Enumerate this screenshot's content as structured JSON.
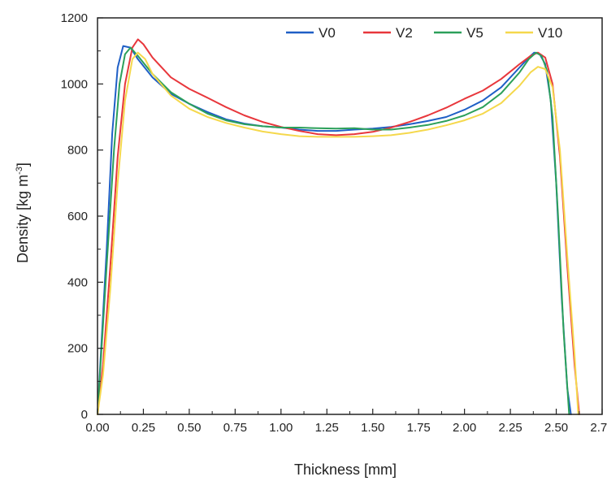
{
  "chart_data": {
    "type": "line",
    "xlabel": "Thickness [mm]",
    "ylabel": {
      "base": "Density [kg m",
      "sup": "-3",
      "end": "]"
    },
    "xlim": [
      0,
      2.75
    ],
    "ylim": [
      0,
      1200
    ],
    "x_ticks": [
      "0.00",
      "0.25",
      "0.50",
      "0.75",
      "1.00",
      "1.25",
      "1.50",
      "1.75",
      "2.00",
      "2.25",
      "2.50",
      "2.75"
    ],
    "y_ticks": [
      "0",
      "200",
      "400",
      "600",
      "800",
      "1000",
      "1200"
    ],
    "grid": false,
    "legend_position": "top-right",
    "series": [
      {
        "name": "V0",
        "color": "#1f5fc6",
        "points": [
          [
            0.0,
            0
          ],
          [
            0.02,
            200
          ],
          [
            0.05,
            500
          ],
          [
            0.08,
            850
          ],
          [
            0.11,
            1050
          ],
          [
            0.14,
            1115
          ],
          [
            0.18,
            1110
          ],
          [
            0.22,
            1075
          ],
          [
            0.3,
            1020
          ],
          [
            0.4,
            970
          ],
          [
            0.5,
            940
          ],
          [
            0.6,
            915
          ],
          [
            0.7,
            893
          ],
          [
            0.8,
            880
          ],
          [
            0.9,
            872
          ],
          [
            1.0,
            868
          ],
          [
            1.1,
            862
          ],
          [
            1.2,
            858
          ],
          [
            1.3,
            858
          ],
          [
            1.4,
            862
          ],
          [
            1.5,
            865
          ],
          [
            1.6,
            870
          ],
          [
            1.7,
            878
          ],
          [
            1.8,
            888
          ],
          [
            1.9,
            900
          ],
          [
            2.0,
            922
          ],
          [
            2.1,
            950
          ],
          [
            2.2,
            990
          ],
          [
            2.3,
            1050
          ],
          [
            2.35,
            1080
          ],
          [
            2.38,
            1095
          ],
          [
            2.41,
            1090
          ],
          [
            2.44,
            1060
          ],
          [
            2.47,
            950
          ],
          [
            2.5,
            700
          ],
          [
            2.53,
            350
          ],
          [
            2.56,
            80
          ],
          [
            2.58,
            0
          ]
        ]
      },
      {
        "name": "V2",
        "color": "#e8373c",
        "points": [
          [
            0.0,
            0
          ],
          [
            0.03,
            150
          ],
          [
            0.07,
            450
          ],
          [
            0.11,
            780
          ],
          [
            0.15,
            1000
          ],
          [
            0.19,
            1110
          ],
          [
            0.22,
            1135
          ],
          [
            0.25,
            1120
          ],
          [
            0.3,
            1080
          ],
          [
            0.4,
            1020
          ],
          [
            0.5,
            985
          ],
          [
            0.6,
            958
          ],
          [
            0.7,
            930
          ],
          [
            0.8,
            905
          ],
          [
            0.9,
            885
          ],
          [
            1.0,
            870
          ],
          [
            1.1,
            858
          ],
          [
            1.2,
            848
          ],
          [
            1.3,
            845
          ],
          [
            1.4,
            848
          ],
          [
            1.5,
            855
          ],
          [
            1.6,
            868
          ],
          [
            1.7,
            885
          ],
          [
            1.8,
            905
          ],
          [
            1.9,
            928
          ],
          [
            2.0,
            955
          ],
          [
            2.1,
            980
          ],
          [
            2.2,
            1015
          ],
          [
            2.3,
            1060
          ],
          [
            2.36,
            1085
          ],
          [
            2.4,
            1095
          ],
          [
            2.44,
            1080
          ],
          [
            2.48,
            1000
          ],
          [
            2.52,
            780
          ],
          [
            2.56,
            450
          ],
          [
            2.6,
            150
          ],
          [
            2.625,
            0
          ]
        ]
      },
      {
        "name": "V5",
        "color": "#2ca05a",
        "points": [
          [
            0.0,
            0
          ],
          [
            0.02,
            180
          ],
          [
            0.05,
            450
          ],
          [
            0.09,
            800
          ],
          [
            0.12,
            1000
          ],
          [
            0.15,
            1090
          ],
          [
            0.18,
            1110
          ],
          [
            0.22,
            1085
          ],
          [
            0.3,
            1030
          ],
          [
            0.4,
            975
          ],
          [
            0.5,
            940
          ],
          [
            0.6,
            910
          ],
          [
            0.7,
            890
          ],
          [
            0.8,
            878
          ],
          [
            0.9,
            872
          ],
          [
            1.0,
            868
          ],
          [
            1.1,
            868
          ],
          [
            1.2,
            866
          ],
          [
            1.3,
            865
          ],
          [
            1.4,
            866
          ],
          [
            1.5,
            862
          ],
          [
            1.6,
            862
          ],
          [
            1.7,
            868
          ],
          [
            1.8,
            876
          ],
          [
            1.9,
            888
          ],
          [
            2.0,
            905
          ],
          [
            2.1,
            930
          ],
          [
            2.2,
            972
          ],
          [
            2.3,
            1035
          ],
          [
            2.35,
            1075
          ],
          [
            2.39,
            1095
          ],
          [
            2.42,
            1085
          ],
          [
            2.45,
            1040
          ],
          [
            2.48,
            900
          ],
          [
            2.51,
            600
          ],
          [
            2.54,
            250
          ],
          [
            2.57,
            0
          ]
        ]
      },
      {
        "name": "V10",
        "color": "#f5d84c",
        "points": [
          [
            0.0,
            0
          ],
          [
            0.03,
            120
          ],
          [
            0.07,
            380
          ],
          [
            0.11,
            700
          ],
          [
            0.15,
            950
          ],
          [
            0.19,
            1075
          ],
          [
            0.22,
            1095
          ],
          [
            0.26,
            1075
          ],
          [
            0.3,
            1030
          ],
          [
            0.4,
            965
          ],
          [
            0.5,
            925
          ],
          [
            0.6,
            900
          ],
          [
            0.7,
            882
          ],
          [
            0.8,
            868
          ],
          [
            0.9,
            856
          ],
          [
            1.0,
            848
          ],
          [
            1.1,
            842
          ],
          [
            1.2,
            840
          ],
          [
            1.3,
            840
          ],
          [
            1.4,
            840
          ],
          [
            1.5,
            842
          ],
          [
            1.6,
            845
          ],
          [
            1.7,
            852
          ],
          [
            1.8,
            862
          ],
          [
            1.9,
            875
          ],
          [
            2.0,
            890
          ],
          [
            2.1,
            910
          ],
          [
            2.2,
            942
          ],
          [
            2.3,
            995
          ],
          [
            2.36,
            1035
          ],
          [
            2.4,
            1052
          ],
          [
            2.44,
            1045
          ],
          [
            2.48,
            990
          ],
          [
            2.52,
            800
          ],
          [
            2.56,
            480
          ],
          [
            2.6,
            180
          ],
          [
            2.62,
            0
          ]
        ]
      }
    ]
  }
}
